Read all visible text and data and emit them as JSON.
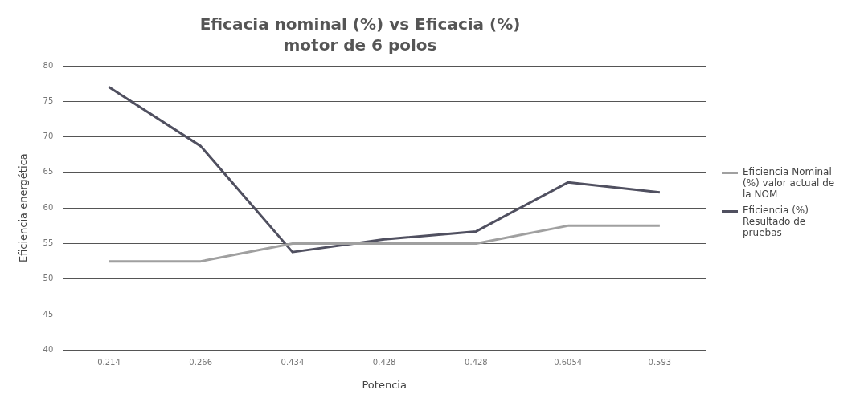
{
  "chart_data": {
    "type": "line",
    "title": "Eficacia nominal (%) vs Eficacia (%)",
    "subtitle": "motor de 6 polos",
    "xlabel": "Potencia",
    "ylabel": "Eficiencia energética",
    "categories": [
      "0.214",
      "0.266",
      "0.434",
      "0.428",
      "0.428",
      "0.6054",
      "0.593"
    ],
    "series": [
      {
        "name": "Eficiencia Nominal (%) valor actual de la NOM",
        "color": "#a0a0a0",
        "values": [
          52.5,
          52.5,
          55,
          55,
          55,
          57.5,
          57.5
        ]
      },
      {
        "name": "Eficiencia (%) Resultado de pruebas",
        "color": "#505060",
        "values": [
          77,
          68.7,
          53.8,
          55.6,
          56.7,
          63.6,
          62.2
        ]
      }
    ],
    "ylim": [
      40,
      80
    ],
    "yticks": [
      40,
      45,
      50,
      55,
      60,
      65,
      70,
      75,
      80
    ],
    "grid": "y",
    "legend": "right",
    "marker": "none",
    "line_style": "solid"
  }
}
